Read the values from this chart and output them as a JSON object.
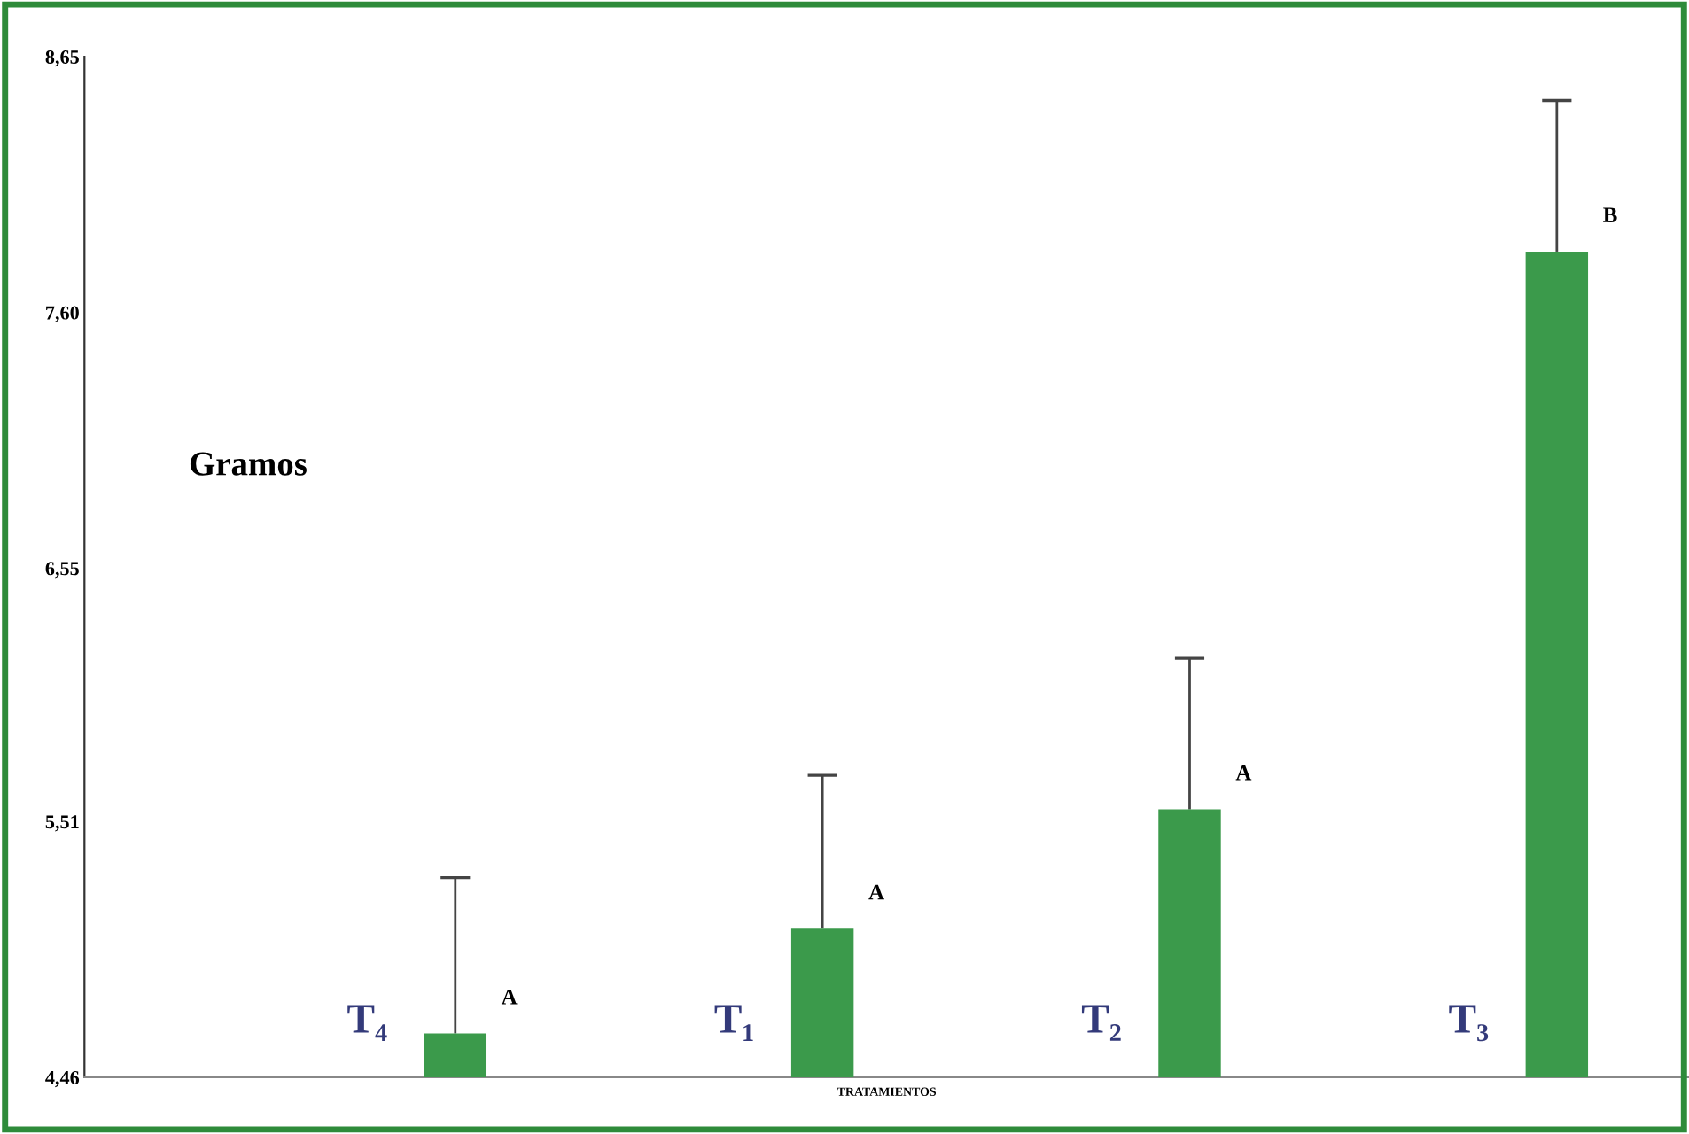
{
  "chart_data": {
    "type": "bar",
    "ylabel": "Gramos",
    "xlabel": "TRATAMIENTOS",
    "categories": [
      "T₄",
      "T₁",
      "T₂",
      "T₃"
    ],
    "values": [
      4.64,
      5.07,
      5.56,
      7.85
    ],
    "errors": [
      [
        4.64,
        5.28
      ],
      [
        5.07,
        5.7
      ],
      [
        5.56,
        6.18
      ],
      [
        7.85,
        8.47
      ]
    ],
    "color": "#3b9a4b",
    "ylim": [
      4.46,
      8.65
    ],
    "yticks": [
      {
        "value": 8.65,
        "label": "8,65"
      },
      {
        "value": 7.6,
        "label": "7,60"
      },
      {
        "value": 6.55,
        "label": "6,55"
      },
      {
        "value": 5.51,
        "label": "5,51"
      },
      {
        "value": 4.46,
        "label": "4,46"
      }
    ],
    "annotations": [
      "A",
      "A",
      "A",
      "B"
    ],
    "grid": false,
    "legend": false
  }
}
